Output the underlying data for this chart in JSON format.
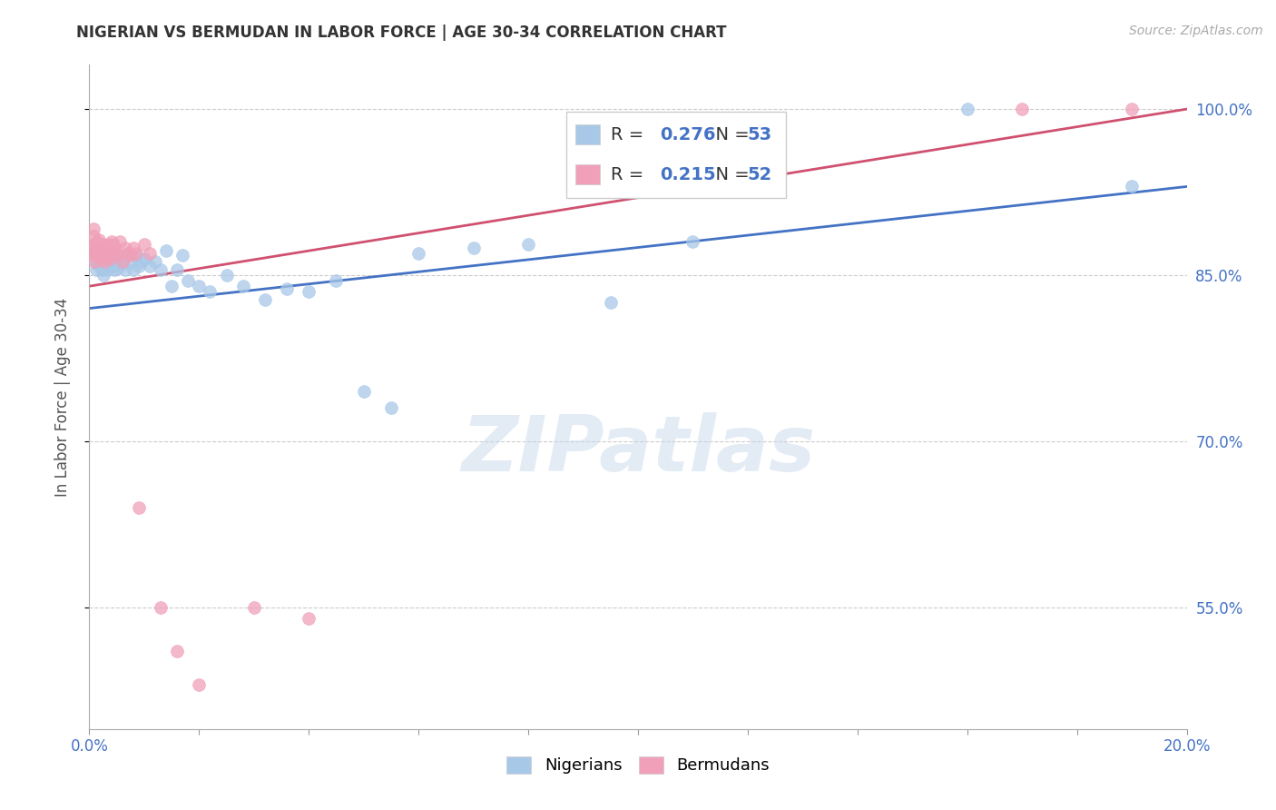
{
  "title": "NIGERIAN VS BERMUDAN IN LABOR FORCE | AGE 30-34 CORRELATION CHART",
  "source": "Source: ZipAtlas.com",
  "ylabel": "In Labor Force | Age 30-34",
  "xlim": [
    0.0,
    0.2
  ],
  "ylim": [
    0.44,
    1.04
  ],
  "nigerian_R": 0.276,
  "nigerian_N": 53,
  "bermudan_R": 0.215,
  "bermudan_N": 52,
  "nigerian_color": "#a8c8e8",
  "bermudan_color": "#f0a0b8",
  "nigerian_line_color": "#4472c4",
  "bermudan_line_color": "#d05070",
  "legend_color": "#4472c4",
  "nigerian_points_x": [
    0.0008,
    0.001,
    0.0012,
    0.0015,
    0.0018,
    0.002,
    0.0022,
    0.0025,
    0.0028,
    0.003,
    0.0032,
    0.0035,
    0.0038,
    0.004,
    0.0042,
    0.0045,
    0.0048,
    0.005,
    0.0055,
    0.006,
    0.0065,
    0.007,
    0.0075,
    0.008,
    0.0085,
    0.009,
    0.0095,
    0.01,
    0.011,
    0.012,
    0.013,
    0.014,
    0.015,
    0.016,
    0.017,
    0.018,
    0.02,
    0.022,
    0.025,
    0.028,
    0.032,
    0.036,
    0.04,
    0.045,
    0.05,
    0.055,
    0.06,
    0.07,
    0.08,
    0.095,
    0.11,
    0.16,
    0.19
  ],
  "nigerian_points_y": [
    0.865,
    0.87,
    0.855,
    0.86,
    0.875,
    0.86,
    0.855,
    0.85,
    0.87,
    0.865,
    0.855,
    0.86,
    0.862,
    0.858,
    0.87,
    0.855,
    0.862,
    0.856,
    0.868,
    0.86,
    0.855,
    0.87,
    0.862,
    0.855,
    0.868,
    0.858,
    0.862,
    0.865,
    0.858,
    0.862,
    0.855,
    0.872,
    0.84,
    0.855,
    0.868,
    0.845,
    0.84,
    0.835,
    0.85,
    0.84,
    0.828,
    0.838,
    0.835,
    0.845,
    0.745,
    0.73,
    0.87,
    0.875,
    0.878,
    0.825,
    0.88,
    1.0,
    0.93
  ],
  "bermudan_points_x": [
    0.0005,
    0.0006,
    0.0007,
    0.0008,
    0.0009,
    0.001,
    0.0011,
    0.0012,
    0.0013,
    0.0014,
    0.0015,
    0.0016,
    0.0017,
    0.0018,
    0.0019,
    0.002,
    0.0021,
    0.0022,
    0.0023,
    0.0024,
    0.0025,
    0.0026,
    0.0027,
    0.0028,
    0.003,
    0.0032,
    0.0034,
    0.0036,
    0.0038,
    0.004,
    0.0042,
    0.0044,
    0.0046,
    0.0048,
    0.005,
    0.0055,
    0.006,
    0.0065,
    0.007,
    0.0075,
    0.008,
    0.0085,
    0.009,
    0.01,
    0.011,
    0.013,
    0.016,
    0.02,
    0.03,
    0.04,
    0.17,
    0.19
  ],
  "bermudan_points_y": [
    0.875,
    0.87,
    0.892,
    0.885,
    0.878,
    0.862,
    0.87,
    0.868,
    0.88,
    0.875,
    0.87,
    0.868,
    0.875,
    0.882,
    0.87,
    0.878,
    0.872,
    0.868,
    0.865,
    0.878,
    0.87,
    0.875,
    0.862,
    0.87,
    0.875,
    0.868,
    0.87,
    0.878,
    0.865,
    0.88,
    0.87,
    0.878,
    0.875,
    0.868,
    0.87,
    0.88,
    0.862,
    0.875,
    0.87,
    0.868,
    0.875,
    0.87,
    0.64,
    0.878,
    0.87,
    0.55,
    0.51,
    0.48,
    0.55,
    0.54,
    1.0,
    1.0
  ],
  "background_color": "#ffffff",
  "grid_color": "#cccccc",
  "watermark_text": "ZIPatlas",
  "watermark_color": "#c8d8ec",
  "watermark_alpha": 0.5,
  "ytick_vals": [
    0.55,
    0.7,
    0.85,
    1.0
  ],
  "ytick_labels": [
    "55.0%",
    "70.0%",
    "85.0%",
    "100.0%"
  ]
}
